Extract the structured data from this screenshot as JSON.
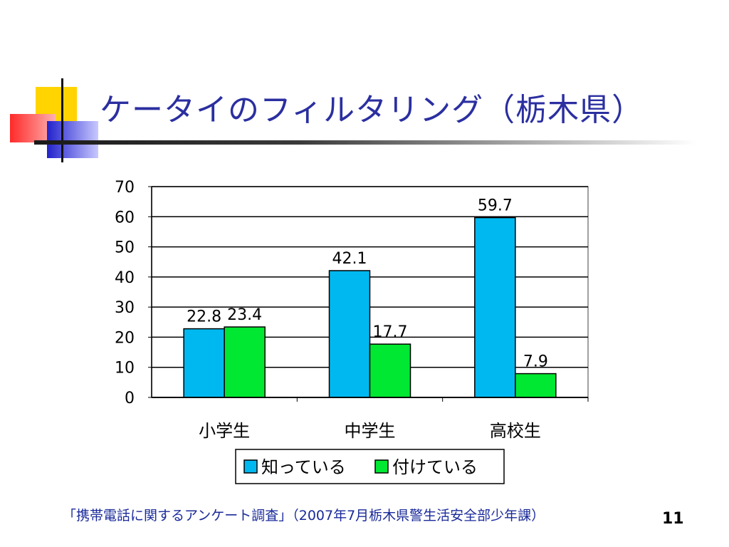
{
  "slide": {
    "title": "ケータイのフィルタリング（栃木県）",
    "source": "「携帯電話に関するアンケート調査」（2007年7月栃木県警生活安全部少年課）",
    "page_number": "11"
  },
  "colors": {
    "title": "#2b2fa0",
    "series_known": "#00b8f0",
    "series_installed": "#00e832",
    "deco_yellow": "#ffd400",
    "deco_red": "#ff3333",
    "deco_blue": "#2222cc"
  },
  "chart_data": {
    "type": "bar",
    "categories": [
      "小学生",
      "中学生",
      "高校生"
    ],
    "series": [
      {
        "name": "知っている",
        "values": [
          22.8,
          42.1,
          59.7
        ],
        "color": "#00b8f0"
      },
      {
        "name": "付けている",
        "values": [
          23.4,
          17.7,
          7.9
        ],
        "color": "#00e832"
      }
    ],
    "ylim": [
      0,
      70
    ],
    "yticks": [
      0,
      10,
      20,
      30,
      40,
      50,
      60,
      70
    ],
    "grid": true,
    "legend_position": "bottom",
    "data_labels": true,
    "title": "",
    "xlabel": "",
    "ylabel": ""
  }
}
